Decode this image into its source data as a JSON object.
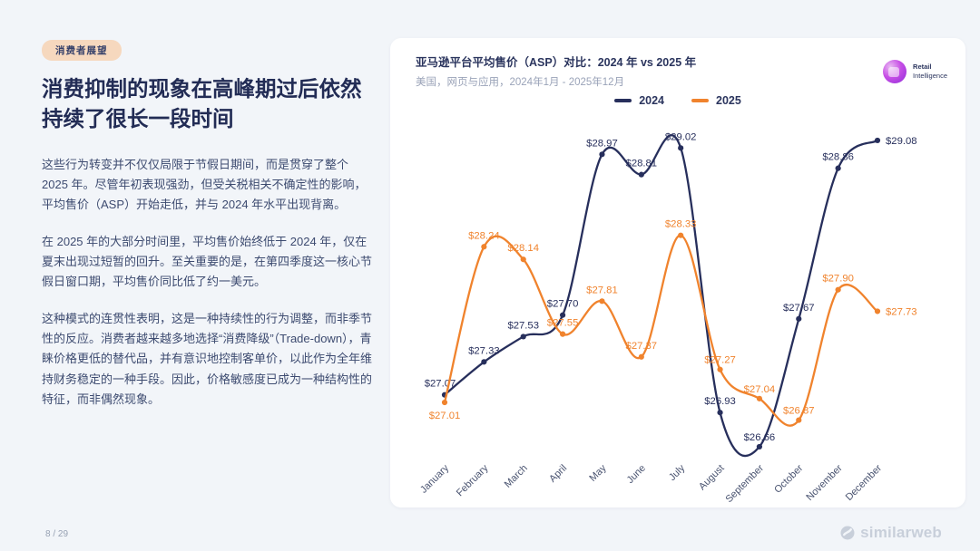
{
  "slide": {
    "page_number": "8 / 29"
  },
  "left_panel": {
    "tag": "消费者展望",
    "title": "消费抑制的现象在高峰期过后依然持续了很长一段时间",
    "paragraphs": [
      "这些行为转变并不仅仅局限于节假日期间，而是贯穿了整个 2025 年。尽管年初表现强劲，但受关税相关不确定性的影响，平均售价（ASP）开始走低，并与 2024 年水平出现背离。",
      "在 2025 年的大部分时间里，平均售价始终低于 2024 年，仅在夏末出现过短暂的回升。至关重要的是，在第四季度这一核心节假日窗口期，平均售价同比低了约一美元。",
      "这种模式的连贯性表明，这是一种持续性的行为调整，而非季节性的反应。消费者越来越多地选择“消费降级”（Trade-down），青睐价格更低的替代品，并有意识地控制客单价，以此作为全年维持财务稳定的一种手段。因此，价格敏感度已成为一种结构性的特征，而非偶然现象。"
    ]
  },
  "chart_card": {
    "title_prefix": "亚马逊平台平均售价（ASP）对比：",
    "title_highlight": "2024 年 vs 2025 年",
    "subtitle": "美国，网页与应用，2024年1月 - 2025年12月",
    "brand_line1": "Retail",
    "brand_line2": "Intelligence"
  },
  "footer_brand": "similarweb",
  "colors": {
    "background": "#F2F5F9",
    "tag_bg": "#F6D8BE",
    "series_2024": "#272F5C",
    "series_2025": "#F0832D"
  },
  "chart_data": {
    "type": "line",
    "title": "亚马逊平台平均售价（ASP）对比：2024 年 vs 2025 年",
    "subtitle": "美国，网页与应用，2024年1月 - 2025年12月",
    "categories": [
      "January",
      "February",
      "March",
      "April",
      "May",
      "June",
      "July",
      "August",
      "September",
      "October",
      "November",
      "December"
    ],
    "series": [
      {
        "name": "2024",
        "color": "#272F5C",
        "values": [
          27.07,
          27.33,
          27.53,
          27.7,
          28.97,
          28.81,
          29.02,
          26.93,
          26.66,
          27.67,
          28.86,
          29.08
        ]
      },
      {
        "name": "2025",
        "color": "#F0832D",
        "values": [
          27.01,
          28.24,
          28.14,
          27.55,
          27.81,
          27.37,
          28.33,
          27.27,
          27.04,
          26.87,
          27.9,
          27.73
        ]
      }
    ],
    "value_prefix": "$",
    "ylim": [
      26.5,
      29.3
    ],
    "grid": false,
    "x_axis_labels_rotated": true,
    "legend_position": "top-center",
    "point_labels": true
  }
}
